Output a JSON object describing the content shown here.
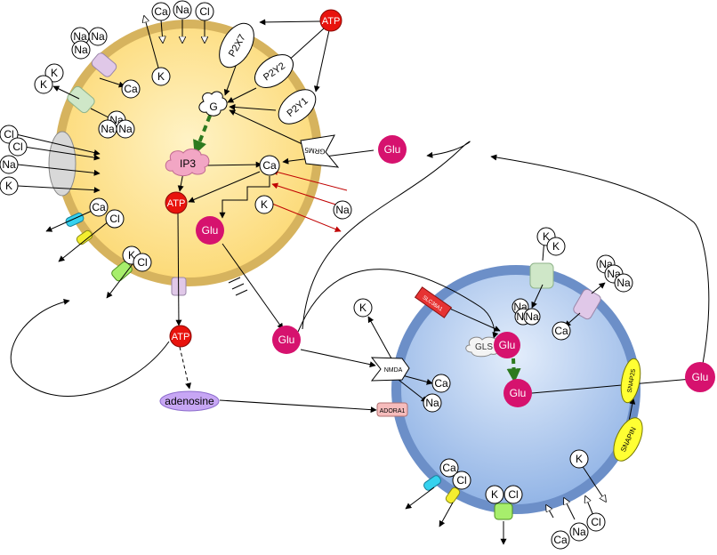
{
  "labels": {
    "ca": "Ca",
    "na": "Na",
    "k": "K",
    "cl": "Cl",
    "atp": "ATP",
    "glu": "Glu",
    "g": "G",
    "ip3": "IP3",
    "p2x7": "P2X7",
    "p2y2": "P2Y2",
    "p2y1": "P2Y1",
    "grm5": "GRM5",
    "nmda": "NMDA",
    "adora1": "ADORA1",
    "slc38a1": "SLC38A1",
    "gls": "GLS",
    "snap25": "SNAP25",
    "snapin": "SNAPIN",
    "adenosine": "adenosine"
  },
  "colors": {
    "glia_fill": "#fbdc7a",
    "glia_border": "#d4b05a",
    "neuron_fill": "#a9c6ef",
    "neuron_border": "#6c8fc8",
    "atp": "#e8130d",
    "glu": "#d6126e",
    "ip3": "#f2a6c4",
    "adenosine": "#c7a6f4",
    "adora1": "#f6bcbc",
    "slc38a1": "#e63333",
    "snap": "#ffff33",
    "arrow_red": "#c00000",
    "arrow_green": "#2d7a1f"
  }
}
